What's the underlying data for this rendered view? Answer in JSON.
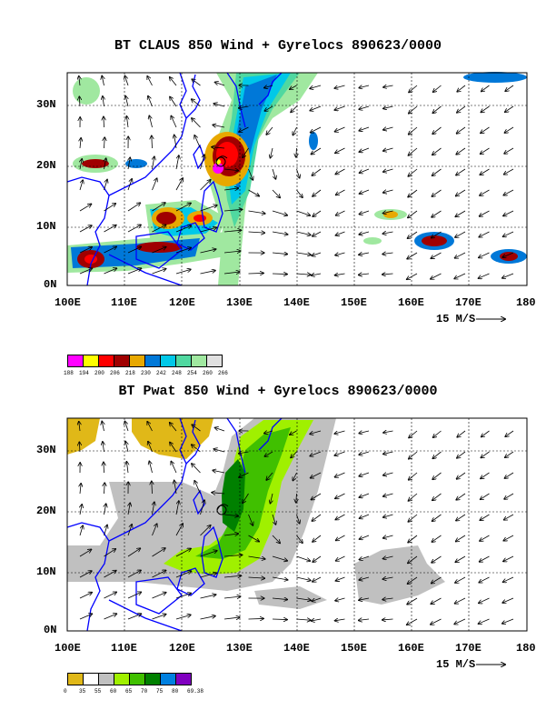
{
  "panel1": {
    "title": "BT CLAUS 850 Wind + Gyrelocs 890623/0000",
    "lat_labels": [
      "30N",
      "20N",
      "10N",
      "0N"
    ],
    "lon_labels": [
      "100E",
      "110E",
      "120E",
      "130E",
      "140E",
      "150E",
      "160E",
      "170E",
      "180"
    ],
    "ref_vector": "15 M/S",
    "legend": {
      "colors": [
        "#ff00ff",
        "#ffff00",
        "#ff0000",
        "#a00000",
        "#e8a800",
        "#0078d8",
        "#00c8e8",
        "#50d8a0",
        "#a0e8a0",
        "#e0e0e0"
      ],
      "labels": [
        "188",
        "194",
        "200",
        "206",
        "218",
        "230",
        "242",
        "248",
        "254",
        "260",
        "266"
      ]
    }
  },
  "panel2": {
    "title": "BT Pwat 850 Wind + Gyrelocs 890623/0000",
    "lat_labels": [
      "30N",
      "20N",
      "10N",
      "0N"
    ],
    "lon_labels": [
      "100E",
      "110E",
      "120E",
      "130E",
      "140E",
      "150E",
      "160E",
      "170E",
      "180"
    ],
    "ref_vector": "15 M/S",
    "legend": {
      "colors": [
        "#e0b818",
        "#ffffff",
        "#c0c0c0",
        "#a0f000",
        "#40c000",
        "#008000",
        "#0080e0",
        "#8000c0"
      ],
      "labels": [
        "0",
        "35",
        "55",
        "60",
        "65",
        "70",
        "75",
        "80",
        "69.38"
      ]
    }
  },
  "chart_data": [
    {
      "type": "heatmap",
      "title": "BT CLAUS 850 Wind + Gyrelocs 890623/0000",
      "xlabel": "",
      "ylabel": "",
      "xlim": [
        100,
        180
      ],
      "ylim": [
        0,
        35
      ],
      "x_ticks": [
        "100E",
        "110E",
        "120E",
        "130E",
        "140E",
        "150E",
        "160E",
        "170E",
        "180"
      ],
      "y_ticks": [
        "0N",
        "10N",
        "20N",
        "30N"
      ],
      "colorbar": [
        188,
        194,
        200,
        206,
        218,
        230,
        242,
        248,
        254,
        260,
        266
      ],
      "reference_vector": "15 M/S",
      "gyre_location": [
        126,
        20
      ]
    },
    {
      "type": "heatmap",
      "title": "BT Pwat 850 Wind + Gyrelocs 890623/0000",
      "xlabel": "",
      "ylabel": "",
      "xlim": [
        100,
        180
      ],
      "ylim": [
        0,
        35
      ],
      "x_ticks": [
        "100E",
        "110E",
        "120E",
        "130E",
        "140E",
        "150E",
        "160E",
        "170E",
        "180"
      ],
      "y_ticks": [
        "0N",
        "10N",
        "20N",
        "30N"
      ],
      "colorbar": [
        "0",
        "35",
        "55",
        "60",
        "65",
        "70",
        "75",
        "80",
        "69.38"
      ],
      "reference_vector": "15 M/S",
      "gyre_location": [
        126,
        19.5
      ]
    }
  ]
}
